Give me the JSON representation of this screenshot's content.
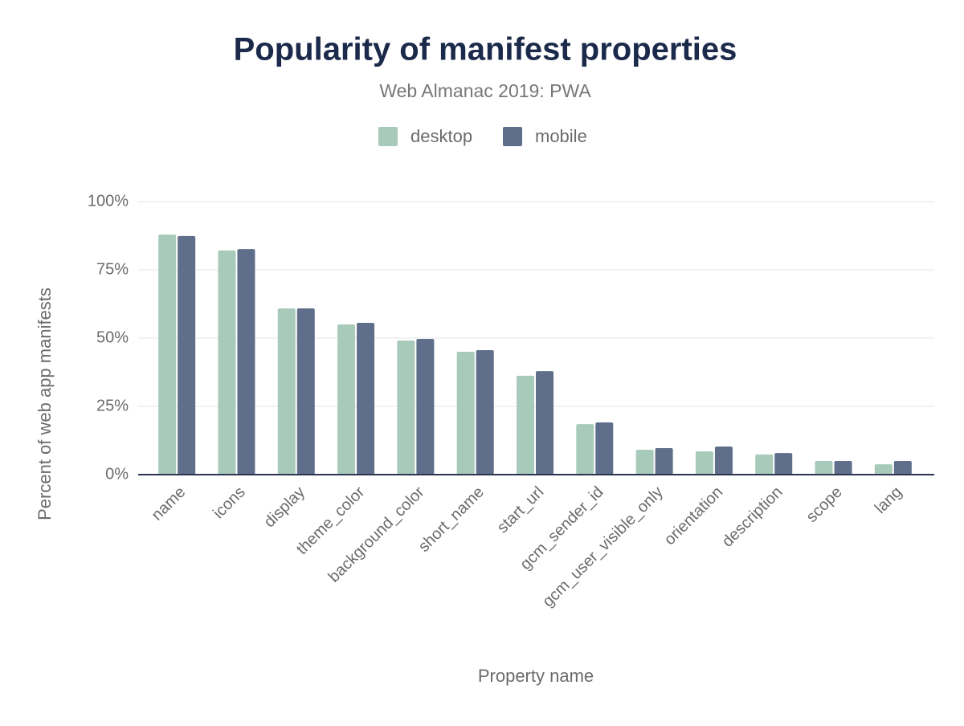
{
  "chart_data": {
    "type": "bar",
    "title": "Popularity of manifest properties",
    "subtitle": "Web Almanac 2019: PWA",
    "x_label": "Property name",
    "y_label": "Percent of web app manifests",
    "categories": [
      "name",
      "icons",
      "display",
      "theme_color",
      "background_color",
      "short_name",
      "start_url",
      "gcm_sender_id",
      "gcm_user_visible_only",
      "orientation",
      "description",
      "scope",
      "lang"
    ],
    "series": [
      {
        "name": "desktop",
        "color": "#a8cabb",
        "values": [
          87.9,
          82.1,
          60.9,
          55.0,
          49.1,
          45.0,
          36.2,
          18.5,
          9.1,
          8.5,
          7.4,
          5.0,
          3.8
        ]
      },
      {
        "name": "mobile",
        "color": "#5f6e8a",
        "values": [
          87.4,
          82.6,
          60.9,
          55.6,
          49.7,
          45.6,
          37.9,
          19.1,
          9.7,
          10.3,
          7.9,
          5.0,
          5.0
        ]
      }
    ],
    "ylim": [
      0,
      100
    ],
    "yticks": [
      {
        "value": 0,
        "label": "0%"
      },
      {
        "value": 25,
        "label": "25%"
      },
      {
        "value": 50,
        "label": "50%"
      },
      {
        "value": 75,
        "label": "75%"
      },
      {
        "value": 100,
        "label": "100%"
      }
    ],
    "grid": true
  }
}
